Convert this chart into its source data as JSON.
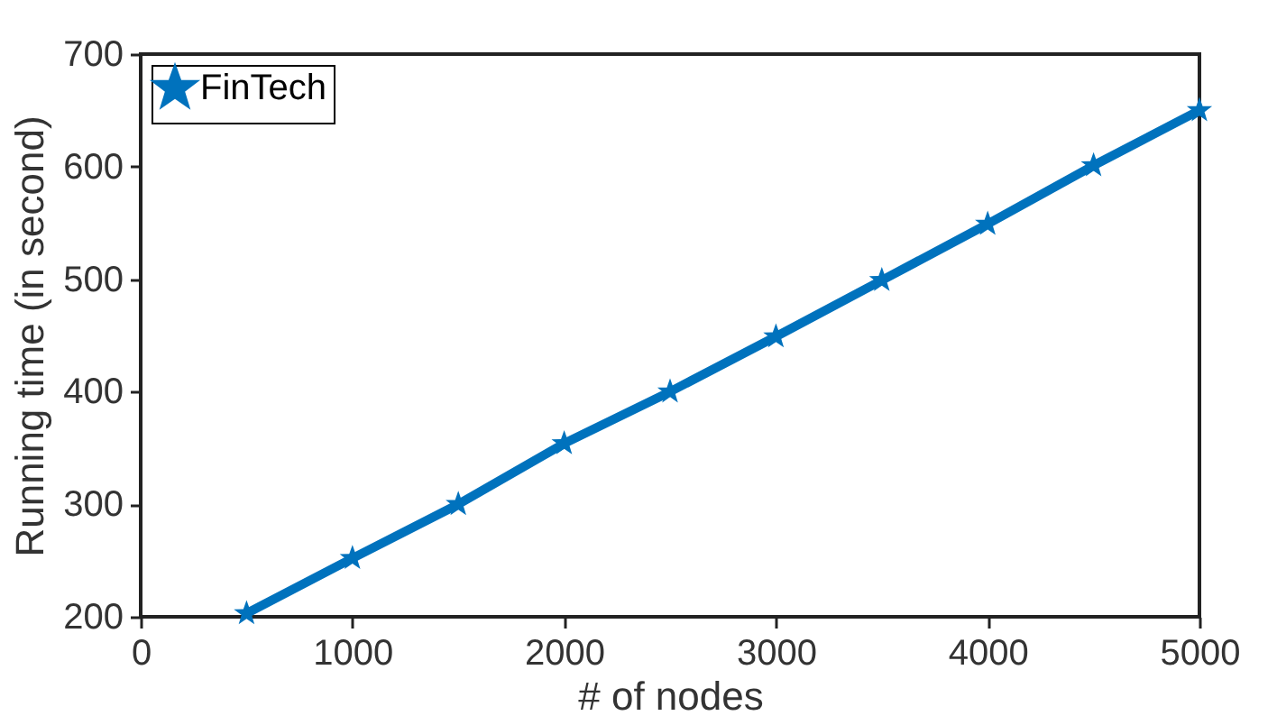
{
  "chart_data": {
    "type": "line",
    "xlabel": "# of nodes",
    "ylabel": "Running time (in second)",
    "x": [
      500,
      1000,
      1500,
      2000,
      2500,
      3000,
      3500,
      4000,
      4500,
      5000
    ],
    "series": [
      {
        "name": "FinTech",
        "color": "#0072bd",
        "values": [
          203,
          252,
          300,
          354,
          400,
          449,
          499,
          549,
          601,
          650
        ]
      }
    ],
    "xlim": [
      0,
      5000
    ],
    "xticks": [
      0,
      1000,
      2000,
      3000,
      4000,
      5000
    ],
    "ylim": [
      200,
      700
    ],
    "yticks": [
      200,
      300,
      400,
      500,
      600,
      700
    ],
    "grid": false,
    "legend": "top left",
    "marker": "star",
    "line_style": "solid"
  }
}
